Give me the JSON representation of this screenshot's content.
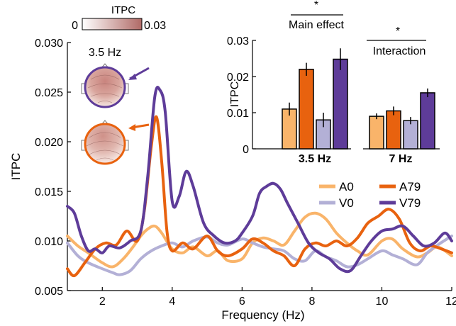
{
  "colors": {
    "A0": "#f9b46a",
    "A79": "#e8620f",
    "V0": "#b3b0d6",
    "V79": "#5e3c99",
    "colorbar_low": "#ffffff",
    "colorbar_high": "#b06a66"
  },
  "colorbar": {
    "title": "ITPC",
    "min_label": "0",
    "max_label": "0.03"
  },
  "topo_label": "3.5 Hz",
  "legend": [
    {
      "key": "A0",
      "label": "A0"
    },
    {
      "key": "A79",
      "label": "A79"
    },
    {
      "key": "V0",
      "label": "V0"
    },
    {
      "key": "V79",
      "label": "V79"
    }
  ],
  "chart_data": [
    {
      "type": "line",
      "xlabel": "Frequency (Hz)",
      "ylabel": "ITPC",
      "xlim": [
        1,
        12
      ],
      "ylim": [
        0.005,
        0.03
      ],
      "xticks": [
        2,
        4,
        6,
        8,
        10,
        12
      ],
      "yticks": [
        "0.005",
        "0.010",
        "0.015",
        "0.020",
        "0.025",
        "0.030"
      ],
      "series": [
        {
          "name": "A0",
          "color_key": "A0",
          "x": [
            1.0,
            1.3,
            1.6,
            2.0,
            2.3,
            2.6,
            2.9,
            3.1,
            3.3,
            3.5,
            3.7,
            4.0,
            4.3,
            4.6,
            5.0,
            5.3,
            5.6,
            6.0,
            6.3,
            6.6,
            6.9,
            7.2,
            7.5,
            7.8,
            8.1,
            8.4,
            8.7,
            9.0,
            9.3,
            9.6,
            10.0,
            10.3,
            10.6,
            11.0,
            11.3,
            11.6,
            12.0
          ],
          "y": [
            0.0105,
            0.0095,
            0.0088,
            0.0078,
            0.0074,
            0.0082,
            0.0095,
            0.0105,
            0.0112,
            0.0115,
            0.0108,
            0.0092,
            0.0088,
            0.0094,
            0.0085,
            0.009,
            0.008,
            0.0082,
            0.0098,
            0.0103,
            0.01,
            0.0096,
            0.011,
            0.0124,
            0.0128,
            0.0122,
            0.0108,
            0.0098,
            0.009,
            0.0086,
            0.01,
            0.0102,
            0.0092,
            0.0084,
            0.0088,
            0.0094,
            0.0085
          ]
        },
        {
          "name": "A79",
          "color_key": "A79",
          "x": [
            1.0,
            1.2,
            1.5,
            1.8,
            2.1,
            2.4,
            2.7,
            3.0,
            3.2,
            3.4,
            3.55,
            3.7,
            3.85,
            4.0,
            4.3,
            4.6,
            5.0,
            5.3,
            5.6,
            6.0,
            6.3,
            6.6,
            6.9,
            7.2,
            7.5,
            7.8,
            8.1,
            8.4,
            8.7,
            9.0,
            9.3,
            9.6,
            9.9,
            10.2,
            10.5,
            10.8,
            11.1,
            11.4,
            11.7,
            12.0
          ],
          "y": [
            0.0072,
            0.0065,
            0.0078,
            0.0092,
            0.0098,
            0.0096,
            0.011,
            0.01,
            0.013,
            0.0195,
            0.0225,
            0.018,
            0.011,
            0.009,
            0.0098,
            0.0092,
            0.0105,
            0.009,
            0.0085,
            0.0092,
            0.0102,
            0.0098,
            0.009,
            0.0085,
            0.0075,
            0.0092,
            0.0098,
            0.0095,
            0.01,
            0.0095,
            0.0103,
            0.0118,
            0.0125,
            0.0132,
            0.0122,
            0.0098,
            0.009,
            0.0095,
            0.0092,
            0.0088
          ]
        },
        {
          "name": "V0",
          "color_key": "V0",
          "x": [
            1.0,
            1.3,
            1.6,
            2.0,
            2.3,
            2.5,
            2.8,
            3.1,
            3.4,
            3.7,
            4.0,
            4.3,
            4.6,
            5.0,
            5.3,
            5.6,
            6.0,
            6.3,
            6.6,
            6.9,
            7.2,
            7.5,
            7.8,
            8.1,
            8.4,
            8.7,
            9.0,
            9.3,
            9.6,
            10.0,
            10.3,
            10.6,
            11.0,
            11.3,
            11.6,
            12.0
          ],
          "y": [
            0.0098,
            0.0085,
            0.0078,
            0.0072,
            0.0068,
            0.0066,
            0.007,
            0.0082,
            0.009,
            0.0095,
            0.0098,
            0.0094,
            0.01,
            0.0104,
            0.0098,
            0.0096,
            0.0102,
            0.0098,
            0.0094,
            0.0092,
            0.009,
            0.0082,
            0.008,
            0.009,
            0.0084,
            0.008,
            0.0074,
            0.0076,
            0.0082,
            0.009,
            0.0086,
            0.0082,
            0.0076,
            0.0088,
            0.0096,
            0.0105
          ]
        },
        {
          "name": "V79",
          "color_key": "V79",
          "x": [
            1.0,
            1.2,
            1.4,
            1.6,
            1.8,
            2.0,
            2.2,
            2.5,
            2.8,
            3.1,
            3.3,
            3.5,
            3.65,
            3.8,
            4.0,
            4.2,
            4.4,
            4.6,
            4.9,
            5.2,
            5.5,
            5.8,
            6.0,
            6.3,
            6.5,
            6.7,
            6.9,
            7.1,
            7.3,
            7.6,
            7.9,
            8.2,
            8.5,
            8.8,
            9.1,
            9.4,
            9.7,
            10.0,
            10.3,
            10.6,
            10.9,
            11.2,
            11.5,
            11.8,
            12.0
          ],
          "y": [
            0.0135,
            0.0128,
            0.0105,
            0.009,
            0.0092,
            0.0088,
            0.0095,
            0.0093,
            0.01,
            0.011,
            0.0165,
            0.0245,
            0.0252,
            0.023,
            0.014,
            0.0145,
            0.017,
            0.0155,
            0.0118,
            0.0105,
            0.0098,
            0.01,
            0.0108,
            0.0125,
            0.0148,
            0.0155,
            0.0158,
            0.0152,
            0.0138,
            0.0118,
            0.0098,
            0.0088,
            0.0082,
            0.0072,
            0.007,
            0.0085,
            0.01,
            0.011,
            0.0112,
            0.0115,
            0.0105,
            0.0095,
            0.0098,
            0.0108,
            0.01
          ]
        }
      ]
    },
    {
      "type": "bar",
      "ylabel": "ITPC",
      "ylim": [
        0,
        0.03
      ],
      "yticks": [
        "0",
        "0.01",
        "0.02",
        "0.03"
      ],
      "groups": [
        {
          "label": "3.5 Hz",
          "significance": "*",
          "annotation": "Main effect",
          "bars": [
            {
              "key": "A0",
              "value": 0.011,
              "err": 0.0018
            },
            {
              "key": "A79",
              "value": 0.022,
              "err": 0.0018
            },
            {
              "key": "V0",
              "value": 0.008,
              "err": 0.002
            },
            {
              "key": "V79",
              "value": 0.0248,
              "err": 0.003
            }
          ]
        },
        {
          "label": "7 Hz",
          "significance": "*",
          "annotation": "Interaction",
          "bars": [
            {
              "key": "A0",
              "value": 0.009,
              "err": 0.0008
            },
            {
              "key": "A79",
              "value": 0.0105,
              "err": 0.0012
            },
            {
              "key": "V0",
              "value": 0.0078,
              "err": 0.001
            },
            {
              "key": "V79",
              "value": 0.0155,
              "err": 0.0012
            }
          ]
        }
      ]
    }
  ]
}
